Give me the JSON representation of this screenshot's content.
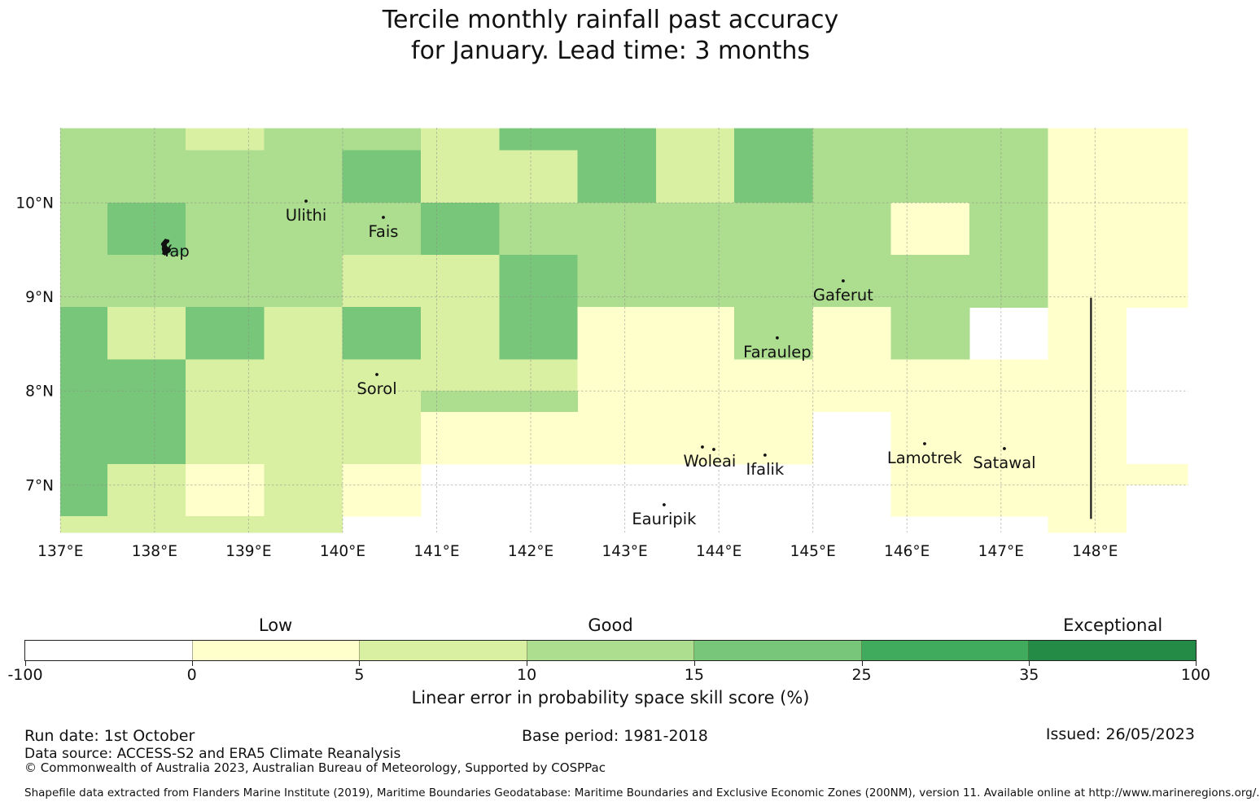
{
  "title": {
    "line1": "Tercile monthly rainfall past accuracy",
    "line2": "for January. Lead time: 3 months"
  },
  "colorbar": {
    "tick_values": [
      "-100",
      "0",
      "5",
      "10",
      "15",
      "25",
      "35",
      "100"
    ],
    "segment_colors": [
      "#ffffff",
      "#ffffcc",
      "#d9f0a3",
      "#addd8e",
      "#78c679",
      "#41ab5d",
      "#238b45"
    ],
    "zone_labels": [
      {
        "text": "Low",
        "segment_index": 1
      },
      {
        "text": "Good",
        "segment_index": 3
      },
      {
        "text": "Exceptional",
        "segment_index": 6
      }
    ],
    "xlabel": "Linear error in probability space skill score (%)"
  },
  "footer": {
    "run_date": "Run date: 1st October",
    "base_period": "Base period: 1981-2018",
    "issued": "Issued: 26/05/2023",
    "data_source": "Data source: ACCESS-S2 and ERA5 Climate Reanalysis",
    "copyright": "© Commonwealth of Australia 2023, Australian Bureau of Meteorology, Supported by COSPPac",
    "shapefile": "Shapefile data extracted from Flanders Marine Institute (2019), Maritime Boundaries Geodatabase: Maritime Boundaries and Exclusive Economic Zones (200NM), version 11. Available online at http://www.marineregions.org/."
  },
  "chart_data": {
    "type": "heatmap",
    "title": "Tercile monthly rainfall past accuracy for January. Lead time: 3 months",
    "value_label": "Linear error in probability space skill score (%)",
    "value_thresholds": [
      -100,
      0,
      5,
      10,
      15,
      25,
      35,
      100
    ],
    "palette": [
      "#ffffff",
      "#ffffcc",
      "#d9f0a3",
      "#addd8e",
      "#78c679",
      "#41ab5d",
      "#238b45"
    ],
    "grid_on": true,
    "lon_range_visible": [
      137.0,
      149.0
    ],
    "lat_range_visible": [
      6.5,
      10.79
    ],
    "lon_edges": [
      137.0,
      137.5,
      138.333,
      139.167,
      140.0,
      140.833,
      141.667,
      142.5,
      143.333,
      144.167,
      145.0,
      145.833,
      146.667,
      147.5,
      148.333,
      149.03
    ],
    "lat_edges": [
      10.79,
      10.556,
      10.0,
      9.444,
      8.889,
      8.333,
      7.778,
      7.222,
      6.667,
      6.49
    ],
    "level_grid": [
      [
        3,
        3,
        2,
        3,
        3,
        2,
        4,
        4,
        2,
        4,
        3,
        3,
        3,
        1,
        1
      ],
      [
        3,
        3,
        3,
        3,
        4,
        2,
        2,
        4,
        2,
        4,
        3,
        3,
        3,
        1,
        1
      ],
      [
        3,
        4,
        3,
        3,
        3,
        4,
        3,
        3,
        3,
        3,
        3,
        1,
        3,
        1,
        1
      ],
      [
        3,
        3,
        3,
        3,
        2,
        2,
        4,
        3,
        3,
        3,
        3,
        3,
        3,
        1,
        1
      ],
      [
        4,
        2,
        4,
        2,
        4,
        2,
        4,
        1,
        1,
        3,
        1,
        3,
        0,
        1,
        0
      ],
      [
        4,
        4,
        2,
        2,
        2,
        2,
        2,
        1,
        1,
        1,
        1,
        1,
        1,
        1,
        0
      ],
      [
        4,
        4,
        2,
        2,
        2,
        1,
        1,
        1,
        1,
        1,
        0,
        1,
        1,
        1,
        0
      ],
      [
        4,
        2,
        1,
        2,
        1,
        0,
        0,
        0,
        0,
        0,
        0,
        1,
        1,
        1,
        0
      ],
      [
        2,
        2,
        2,
        2,
        0,
        0,
        0,
        0,
        0,
        0,
        0,
        0,
        0,
        1,
        0
      ]
    ],
    "override_rects": [
      {
        "lon1": 140.833,
        "lon2": 142.5,
        "lat1": 7.778,
        "lat2": 8.0,
        "level": 3
      },
      {
        "lon1": 148.333,
        "lon2": 149.03,
        "lat1": 7.0,
        "lat2": 7.222,
        "level": 1
      }
    ],
    "eez_boundary_line": {
      "lon": 147.957,
      "lat_from": 6.64,
      "lat_to": 8.99
    },
    "places": [
      {
        "name": "Yap",
        "lon": 138.226,
        "lat": 9.49,
        "marker": "island"
      },
      {
        "name": "Ulithi",
        "lon": 139.611,
        "lat": 9.871,
        "marker": "dot"
      },
      {
        "name": "Fais",
        "lon": 140.433,
        "lat": 9.698,
        "marker": "dot"
      },
      {
        "name": "Gaferut",
        "lon": 145.322,
        "lat": 9.023,
        "marker": "dot"
      },
      {
        "name": "Faraulep",
        "lon": 144.621,
        "lat": 8.417,
        "marker": "dot"
      },
      {
        "name": "Sorol",
        "lon": 140.364,
        "lat": 8.028,
        "marker": "dot"
      },
      {
        "name": "Woleai",
        "lon": 143.903,
        "lat": 7.257,
        "marker": "double-dot"
      },
      {
        "name": "Ifalik",
        "lon": 144.491,
        "lat": 7.171,
        "marker": "dot"
      },
      {
        "name": "Lamotrek",
        "lon": 146.188,
        "lat": 7.292,
        "marker": "dot"
      },
      {
        "name": "Satawal",
        "lon": 147.036,
        "lat": 7.24,
        "marker": "dot"
      },
      {
        "name": "Eauripik",
        "lon": 143.418,
        "lat": 6.643,
        "marker": "dot"
      }
    ],
    "x_ticks": [
      {
        "lon": 137,
        "label": "137°E"
      },
      {
        "lon": 138,
        "label": "138°E"
      },
      {
        "lon": 139,
        "label": "139°E"
      },
      {
        "lon": 140,
        "label": "140°E"
      },
      {
        "lon": 141,
        "label": "141°E"
      },
      {
        "lon": 142,
        "label": "142°E"
      },
      {
        "lon": 143,
        "label": "143°E"
      },
      {
        "lon": 144,
        "label": "144°E"
      },
      {
        "lon": 145,
        "label": "145°E"
      },
      {
        "lon": 146,
        "label": "146°E"
      },
      {
        "lon": 147,
        "label": "147°E"
      },
      {
        "lon": 148,
        "label": "148°E"
      }
    ],
    "y_ticks": [
      {
        "lat": 10,
        "label": "10°N"
      },
      {
        "lat": 9,
        "label": "9°N"
      },
      {
        "lat": 8,
        "label": "8°N"
      },
      {
        "lat": 7,
        "label": "7°N"
      }
    ]
  }
}
